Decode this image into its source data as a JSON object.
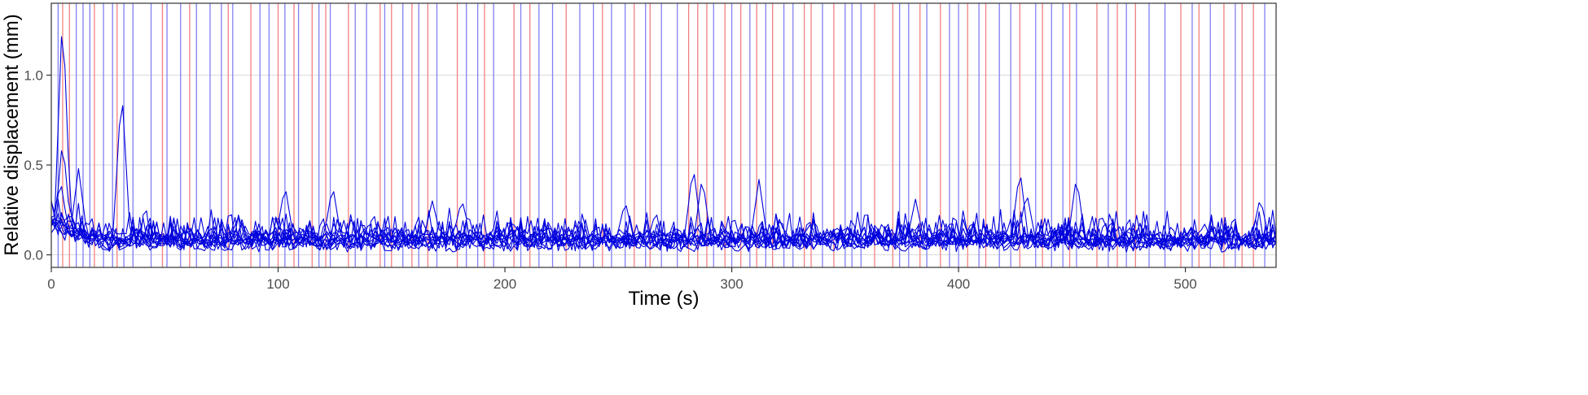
{
  "chart_data": {
    "type": "line",
    "title": "",
    "xlabel": "Time (s)",
    "ylabel": "Relative displacement (mm)",
    "xlim": [
      0,
      540
    ],
    "ylim": [
      -0.07,
      1.4
    ],
    "x_ticks": [
      0,
      100,
      200,
      300,
      400,
      500
    ],
    "y_ticks": [
      0.0,
      0.5,
      1.0
    ],
    "x_tick_labels": [
      "0",
      "100",
      "200",
      "300",
      "400",
      "500"
    ],
    "y_tick_labels": [
      "0.0",
      "0.5",
      "1.0"
    ],
    "grid": "horizontal major gridlines",
    "legend": "none",
    "colors": {
      "series": "#0000dd",
      "event_a": "#f28080",
      "event_b": "#8080f2",
      "grid": "#d9d9d9",
      "frame": "#333333"
    },
    "event_lines_a": [
      5,
      8,
      19,
      29,
      49,
      61,
      78,
      88,
      100,
      107,
      115,
      121,
      131,
      145,
      150,
      159,
      166,
      179,
      191,
      204,
      211,
      227,
      243,
      257,
      264,
      281,
      285,
      289,
      297,
      304,
      311,
      318,
      332,
      335,
      345,
      363,
      371,
      383,
      392,
      404,
      412,
      427,
      437,
      449,
      461,
      470,
      478,
      498,
      506,
      517,
      525,
      530
    ],
    "event_lines_b": [
      3,
      11,
      14,
      17,
      23,
      27,
      32,
      36,
      44,
      51,
      57,
      64,
      70,
      75,
      80,
      92,
      96,
      103,
      109,
      118,
      123,
      134,
      139,
      147,
      155,
      162,
      170,
      183,
      188,
      195,
      207,
      215,
      221,
      233,
      239,
      247,
      253,
      262,
      269,
      276,
      292,
      300,
      308,
      315,
      323,
      327,
      340,
      350,
      353,
      357,
      374,
      378,
      386,
      396,
      400,
      409,
      418,
      423,
      434,
      441,
      446,
      452,
      466,
      474,
      484,
      491,
      503,
      511,
      522,
      535
    ],
    "series_shape": {
      "count": 12,
      "duration_s": 540,
      "sample_step_s": 1.5,
      "baseline_range_mm": [
        0.05,
        0.1
      ],
      "noise_mm": 0.035
    },
    "series_peaks": [
      {
        "series": 0,
        "x": 5,
        "y": 1.38
      },
      {
        "series": 1,
        "x": 5,
        "y": 0.65
      },
      {
        "series": 2,
        "x": 4,
        "y": 0.42
      },
      {
        "series": 3,
        "x": 12,
        "y": 0.48
      },
      {
        "series": 4,
        "x": 31,
        "y": 0.94
      },
      {
        "series": 5,
        "x": 103,
        "y": 0.39
      },
      {
        "series": 6,
        "x": 124,
        "y": 0.39
      },
      {
        "series": 7,
        "x": 283,
        "y": 0.5
      },
      {
        "series": 8,
        "x": 287,
        "y": 0.44
      },
      {
        "series": 9,
        "x": 312,
        "y": 0.42
      },
      {
        "series": 10,
        "x": 427,
        "y": 0.48
      },
      {
        "series": 11,
        "x": 452,
        "y": 0.44
      },
      {
        "series": 2,
        "x": 181,
        "y": 0.31
      },
      {
        "series": 5,
        "x": 253,
        "y": 0.3
      },
      {
        "series": 9,
        "x": 381,
        "y": 0.31
      },
      {
        "series": 1,
        "x": 533,
        "y": 0.32
      },
      {
        "series": 3,
        "x": 168,
        "y": 0.3
      },
      {
        "series": 6,
        "x": 430,
        "y": 0.35
      }
    ]
  }
}
